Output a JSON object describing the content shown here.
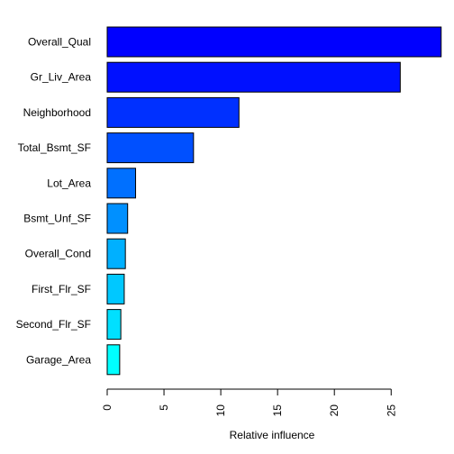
{
  "chart_data": {
    "type": "bar",
    "orientation": "horizontal",
    "categories": [
      "Overall_Qual",
      "Gr_Liv_Area",
      "Neighborhood",
      "Total_Bsmt_SF",
      "Lot_Area",
      "Bsmt_Unf_SF",
      "Overall_Cond",
      "First_Flr_SF",
      "Second_Flr_SF",
      "Garage_Area"
    ],
    "values": [
      29.4,
      25.8,
      11.6,
      7.6,
      2.5,
      1.8,
      1.6,
      1.5,
      1.2,
      1.1
    ],
    "colors": [
      "#0000FF",
      "#0010FF",
      "#0030FF",
      "#0050FF",
      "#0070FF",
      "#0090FF",
      "#00B0FF",
      "#00C8FF",
      "#00E0FF",
      "#00FFFF"
    ],
    "xticks": [
      0,
      5,
      10,
      15,
      20,
      25
    ],
    "xlabel": "Relative influence",
    "xlim": [
      0,
      29.4
    ],
    "grid": false
  }
}
